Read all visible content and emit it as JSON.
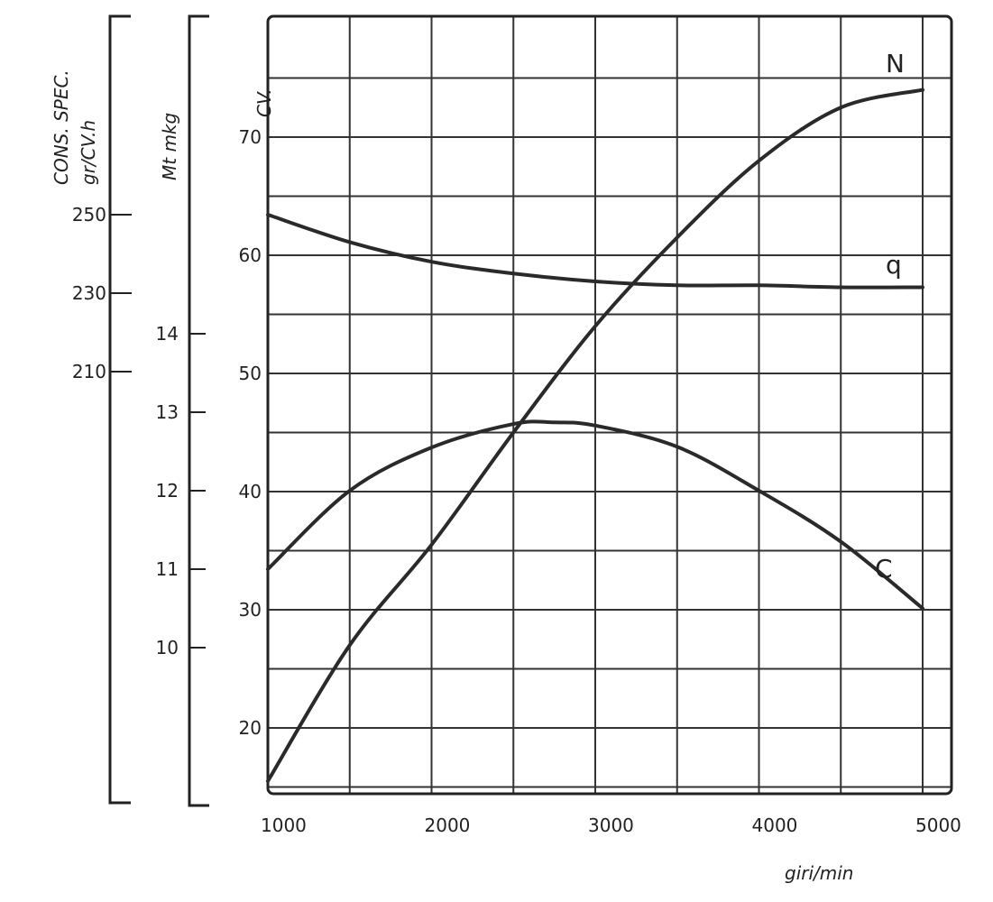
{
  "chart_data": {
    "type": "line",
    "title": "",
    "xlabel": "giri/min",
    "x_ticks": [
      1000,
      2000,
      3000,
      4000,
      5000
    ],
    "xlim": [
      1000,
      5000
    ],
    "grid": true,
    "axes": [
      {
        "id": "cv",
        "label": "CV.",
        "ticks": [
          20,
          30,
          40,
          50,
          60,
          70
        ],
        "ylim": [
          15,
          75
        ]
      },
      {
        "id": "mt",
        "label": "Mt   mkg",
        "ticks": [
          10,
          11,
          12,
          13,
          14
        ]
      },
      {
        "id": "q",
        "label_line1": "CONS. SPEC.",
        "label_line2": "gr/CV.h",
        "ticks": [
          250,
          230,
          210
        ]
      }
    ],
    "series": [
      {
        "name": "N",
        "axis": "cv",
        "x": [
          1000,
          1500,
          2000,
          2500,
          3000,
          3500,
          4000,
          4500,
          5000
        ],
        "values": [
          15.5,
          27,
          35.5,
          45,
          54,
          61.5,
          68,
          72.5,
          74
        ]
      },
      {
        "name": "q",
        "axis": "q",
        "x": [
          1000,
          1500,
          2000,
          2500,
          3000,
          3500,
          4000,
          4500,
          5000
        ],
        "values": [
          250,
          243,
          238,
          235,
          233,
          232,
          232,
          231.5,
          231.5
        ]
      },
      {
        "name": "C",
        "axis": "mt",
        "x": [
          1000,
          1500,
          2000,
          2500,
          2750,
          3000,
          3500,
          4000,
          4500,
          5000
        ],
        "values": [
          11.0,
          12.0,
          12.55,
          12.85,
          12.87,
          12.83,
          12.56,
          12.0,
          11.35,
          10.5
        ]
      }
    ]
  }
}
